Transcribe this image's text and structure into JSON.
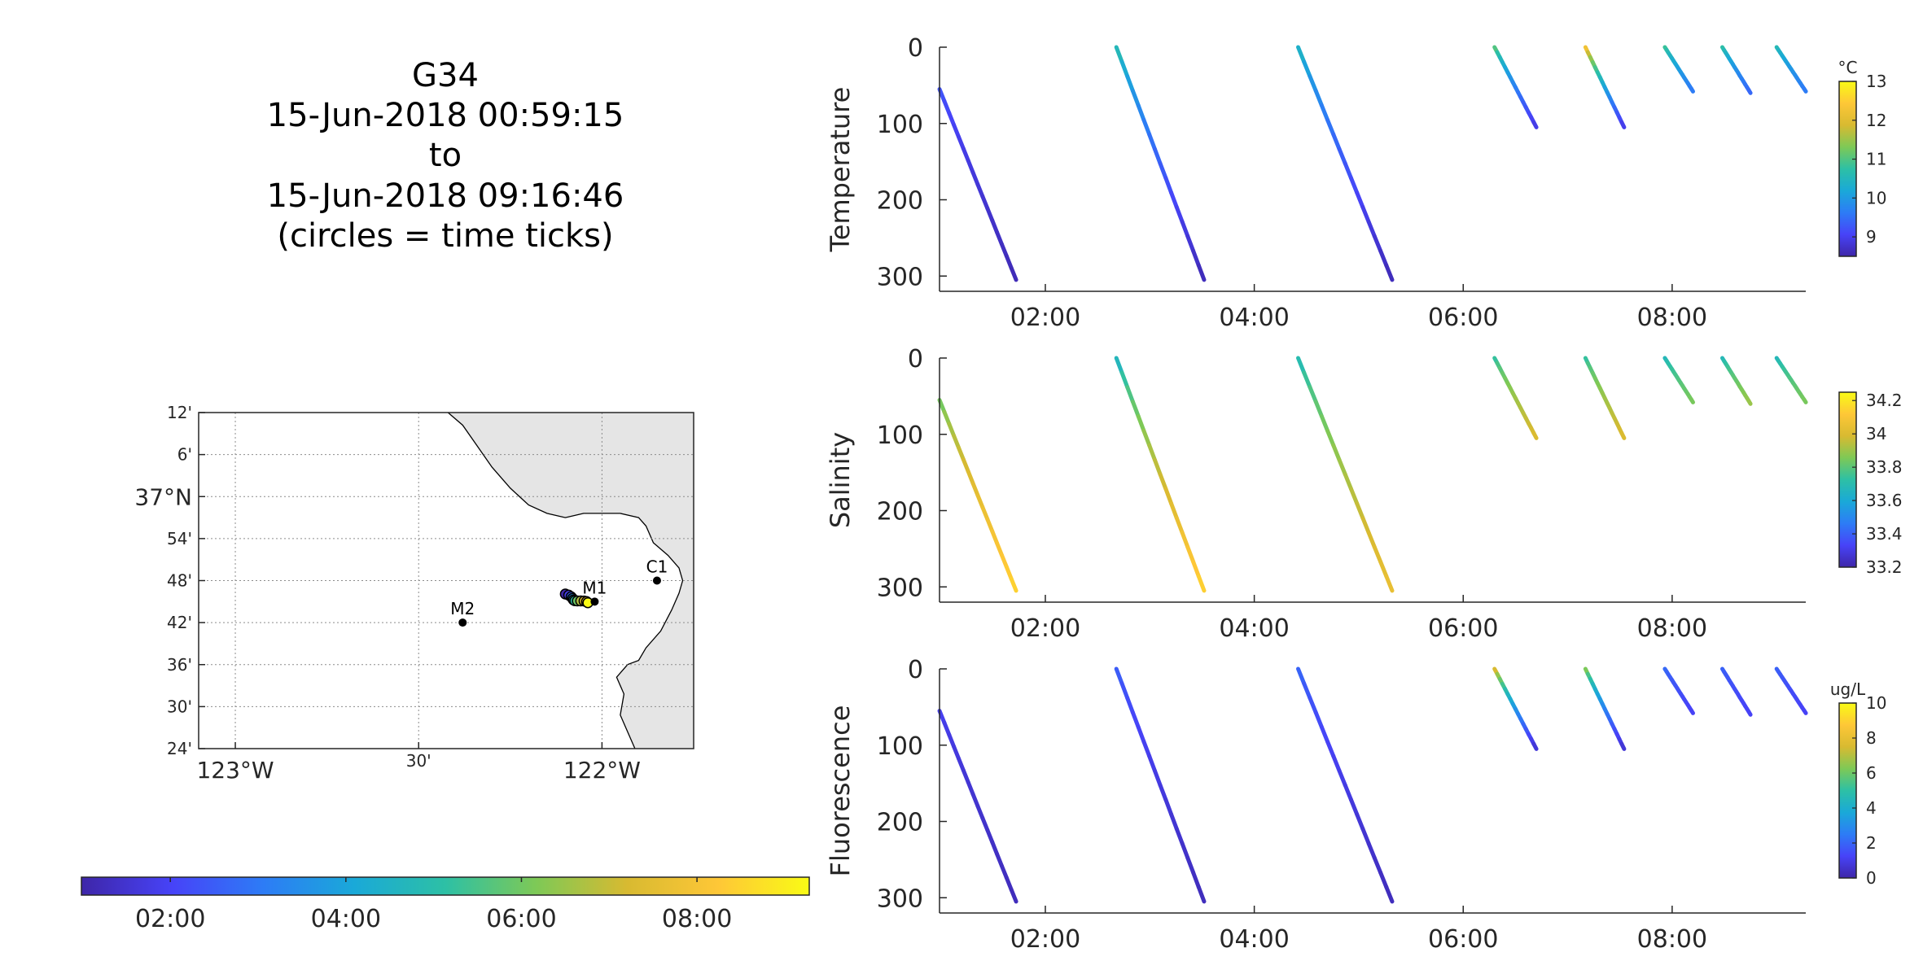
{
  "title": {
    "lines": [
      "G34",
      "15-Jun-2018 00:59:15",
      "to",
      "15-Jun-2018 09:16:46",
      "(circles = time ticks)"
    ]
  },
  "colormap": [
    "#3e26a8",
    "#4743f8",
    "#2d7cf6",
    "#1aa9d8",
    "#2dc0a5",
    "#7ec956",
    "#d8ba31",
    "#fec737",
    "#f9fb15"
  ],
  "map": {
    "lon_range": [
      -123.1,
      -121.75
    ],
    "lat_range": [
      36.4,
      37.2
    ],
    "lon_ticks": [
      {
        "value": -123.0,
        "label": "123°W",
        "major": true
      },
      {
        "value": -122.5,
        "label": "30'",
        "major": false
      },
      {
        "value": -122.0,
        "label": "122°W",
        "major": true
      }
    ],
    "lat_ticks": [
      {
        "value": 37.2,
        "label": "12'",
        "major": false
      },
      {
        "value": 37.1,
        "label": "6'",
        "major": false
      },
      {
        "value": 37.0,
        "label": "37°N",
        "major": true
      },
      {
        "value": 36.9,
        "label": "54'",
        "major": false
      },
      {
        "value": 36.8,
        "label": "48'",
        "major": false
      },
      {
        "value": 36.7,
        "label": "42'",
        "major": false
      },
      {
        "value": 36.6,
        "label": "36'",
        "major": false
      },
      {
        "value": 36.5,
        "label": "30'",
        "major": false
      },
      {
        "value": 36.4,
        "label": "24'",
        "major": false
      }
    ],
    "land_color": "#e5e5e5",
    "coastline": [
      [
        -122.42,
        37.2
      ],
      [
        -122.38,
        37.17
      ],
      [
        -122.34,
        37.12
      ],
      [
        -122.3,
        37.07
      ],
      [
        -122.25,
        37.02
      ],
      [
        -122.2,
        36.98
      ],
      [
        -122.15,
        36.96
      ],
      [
        -122.1,
        36.95
      ],
      [
        -122.05,
        36.96
      ],
      [
        -122.0,
        36.96
      ],
      [
        -121.95,
        36.96
      ],
      [
        -121.9,
        36.95
      ],
      [
        -121.88,
        36.93
      ],
      [
        -121.86,
        36.89
      ],
      [
        -121.82,
        36.86
      ],
      [
        -121.79,
        36.83
      ],
      [
        -121.78,
        36.8
      ],
      [
        -121.79,
        36.77
      ],
      [
        -121.81,
        36.73
      ],
      [
        -121.84,
        36.68
      ],
      [
        -121.88,
        36.64
      ],
      [
        -121.9,
        36.61
      ],
      [
        -121.93,
        36.6
      ],
      [
        -121.96,
        36.57
      ],
      [
        -121.94,
        36.53
      ],
      [
        -121.95,
        36.48
      ],
      [
        -121.93,
        36.44
      ],
      [
        -121.91,
        36.4
      ]
    ],
    "stations": [
      {
        "name": "C1",
        "lon": -121.85,
        "lat": 36.8
      },
      {
        "name": "M2",
        "lon": -122.38,
        "lat": 36.7
      },
      {
        "name": "M1",
        "lon": -122.02,
        "lat": 36.75
      }
    ],
    "track": {
      "lon_start": -122.1,
      "lat_start": 36.765,
      "lon_end": -122.04,
      "lat_end": 36.745
    }
  },
  "time_colorbar": {
    "range_hours": [
      0.987,
      9.279
    ],
    "ticks": [
      {
        "value": 2,
        "label": "02:00"
      },
      {
        "value": 4,
        "label": "04:00"
      },
      {
        "value": 6,
        "label": "06:00"
      },
      {
        "value": 8,
        "label": "08:00"
      }
    ]
  },
  "profiles": {
    "x_range_hours": [
      0.987,
      9.279
    ],
    "x_ticks": [
      {
        "value": 2,
        "label": "02:00"
      },
      {
        "value": 4,
        "label": "04:00"
      },
      {
        "value": 6,
        "label": "06:00"
      },
      {
        "value": 8,
        "label": "08:00"
      }
    ],
    "y_range": [
      0,
      320
    ],
    "y_ticks": [
      {
        "value": 0,
        "label": "0"
      },
      {
        "value": 100,
        "label": "100"
      },
      {
        "value": 200,
        "label": "200"
      },
      {
        "value": 300,
        "label": "300"
      }
    ],
    "dives": [
      {
        "t0": 0.987,
        "d0": 55,
        "t1": 1.72,
        "d1": 305
      },
      {
        "t0": 2.68,
        "d0": 0,
        "t1": 3.52,
        "d1": 305
      },
      {
        "t0": 4.42,
        "d0": 0,
        "t1": 5.32,
        "d1": 305
      },
      {
        "t0": 6.3,
        "d0": 0,
        "t1": 6.7,
        "d1": 105
      },
      {
        "t0": 7.17,
        "d0": 0,
        "t1": 7.54,
        "d1": 105
      },
      {
        "t0": 7.93,
        "d0": 0,
        "t1": 8.2,
        "d1": 58
      },
      {
        "t0": 8.48,
        "d0": 0,
        "t1": 8.75,
        "d1": 60
      },
      {
        "t0": 9.0,
        "d0": 0,
        "t1": 9.28,
        "d1": 58
      }
    ]
  },
  "panels": [
    {
      "ylabel": "Temperature",
      "unit": "°C",
      "clim": [
        8.5,
        13
      ],
      "cticks": [
        {
          "value": 9,
          "label": "9"
        },
        {
          "value": 10,
          "label": "10"
        },
        {
          "value": 11,
          "label": "11"
        },
        {
          "value": 12,
          "label": "12"
        },
        {
          "value": 13,
          "label": "13"
        }
      ],
      "dive_values": [
        {
          "v0": 9.3,
          "v1": 8.6
        },
        {
          "v0": 10.8,
          "v1": 8.6
        },
        {
          "v0": 10.6,
          "v1": 8.6
        },
        {
          "v0": 11.3,
          "v1": 8.9
        },
        {
          "v0": 12.7,
          "v1": 8.9
        },
        {
          "v0": 11.0,
          "v1": 9.6
        },
        {
          "v0": 10.9,
          "v1": 9.4
        },
        {
          "v0": 10.7,
          "v1": 9.6
        }
      ]
    },
    {
      "ylabel": "Salinity",
      "unit": "",
      "clim": [
        33.2,
        34.25
      ],
      "cticks": [
        {
          "value": 33.2,
          "label": "33.2"
        },
        {
          "value": 33.4,
          "label": "33.4"
        },
        {
          "value": 33.6,
          "label": "33.6"
        },
        {
          "value": 33.8,
          "label": "33.8"
        },
        {
          "value": 34.0,
          "label": "34"
        },
        {
          "value": 34.2,
          "label": "34.2"
        }
      ],
      "dive_values": [
        {
          "v0": 33.8,
          "v1": 34.15
        },
        {
          "v0": 33.6,
          "v1": 34.15
        },
        {
          "v0": 33.65,
          "v1": 34.05
        },
        {
          "v0": 33.7,
          "v1": 34.0
        },
        {
          "v0": 33.7,
          "v1": 34.0
        },
        {
          "v0": 33.65,
          "v1": 33.85
        },
        {
          "v0": 33.65,
          "v1": 33.9
        },
        {
          "v0": 33.65,
          "v1": 33.85
        }
      ]
    },
    {
      "ylabel": "Fluorescence",
      "unit": "ug/L",
      "clim": [
        0,
        10
      ],
      "cticks": [
        {
          "value": 0,
          "label": "0"
        },
        {
          "value": 2,
          "label": "2"
        },
        {
          "value": 4,
          "label": "4"
        },
        {
          "value": 6,
          "label": "6"
        },
        {
          "value": 8,
          "label": "8"
        },
        {
          "value": 10,
          "label": "10"
        }
      ],
      "dive_values": [
        {
          "v0": 1.2,
          "v1": 0.3
        },
        {
          "v0": 2.0,
          "v1": 0.3
        },
        {
          "v0": 2.2,
          "v1": 0.3
        },
        {
          "v0": 8.5,
          "v1": 0.6
        },
        {
          "v0": 7.0,
          "v1": 0.6
        },
        {
          "v0": 2.2,
          "v1": 1.2
        },
        {
          "v0": 2.0,
          "v1": 1.2
        },
        {
          "v0": 2.0,
          "v1": 1.2
        }
      ]
    }
  ]
}
